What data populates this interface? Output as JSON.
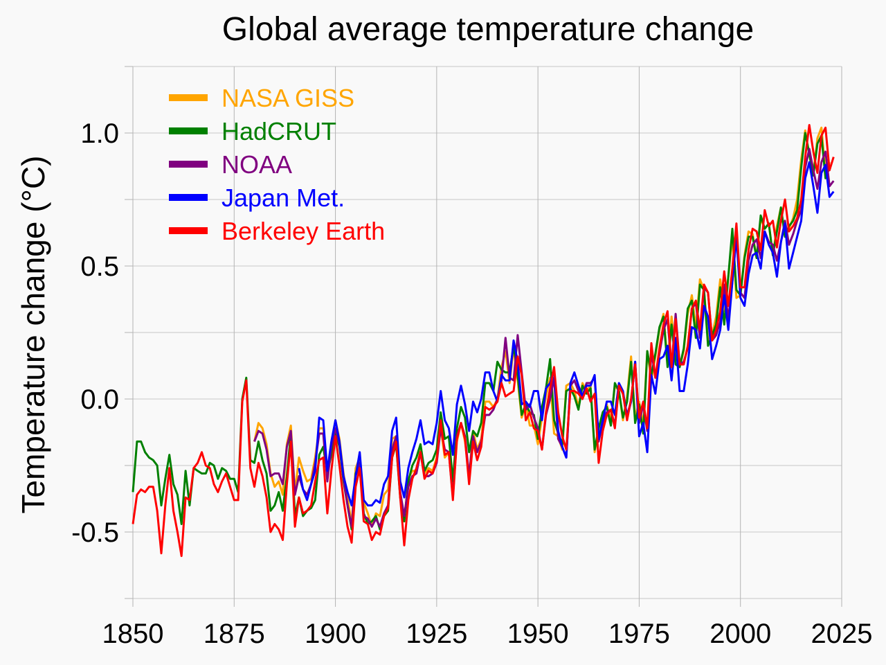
{
  "chart_data": {
    "type": "line",
    "title": "Global average temperature change",
    "xlabel": "",
    "ylabel": "Temperature change (°C)",
    "xlim": [
      1850,
      2025
    ],
    "ylim": [
      -0.75,
      1.25
    ],
    "x_ticks": [
      1850,
      1875,
      1900,
      1925,
      1950,
      1975,
      2000,
      2025
    ],
    "y_ticks": [
      {
        "value": -0.5,
        "label": "-0.5"
      },
      {
        "value": 0,
        "label": "0.0"
      },
      {
        "value": 0.5,
        "label": "0.5"
      },
      {
        "value": 1.0,
        "label": "1.0"
      }
    ],
    "grid": true,
    "legend_position": "top-left",
    "series": [
      {
        "name": "NASA GISS",
        "color": "#ffa500",
        "x_start": 1880,
        "values": [
          -0.16,
          -0.09,
          -0.11,
          -0.17,
          -0.28,
          -0.33,
          -0.31,
          -0.36,
          -0.17,
          -0.1,
          -0.35,
          -0.22,
          -0.27,
          -0.31,
          -0.3,
          -0.22,
          -0.11,
          -0.11,
          -0.27,
          -0.17,
          -0.08,
          -0.15,
          -0.28,
          -0.37,
          -0.47,
          -0.26,
          -0.22,
          -0.39,
          -0.43,
          -0.48,
          -0.43,
          -0.44,
          -0.36,
          -0.34,
          -0.15,
          -0.14,
          -0.36,
          -0.46,
          -0.3,
          -0.27,
          -0.27,
          -0.19,
          -0.28,
          -0.26,
          -0.27,
          -0.22,
          -0.11,
          -0.22,
          -0.2,
          -0.36,
          -0.16,
          -0.09,
          -0.16,
          -0.29,
          -0.12,
          -0.19,
          -0.15,
          -0.01,
          -0.01,
          -0.03,
          0.0,
          0.12,
          0.18,
          0.06,
          0.19,
          0.07,
          -0.07,
          -0.02,
          -0.1,
          -0.1,
          -0.17,
          -0.07,
          0.01,
          0.08,
          -0.13,
          -0.14,
          -0.19,
          0.05,
          0.06,
          0.03,
          -0.03,
          0.06,
          0.03,
          0.05,
          -0.2,
          -0.11,
          -0.06,
          -0.02,
          -0.08,
          0.05,
          0.03,
          -0.08,
          0.01,
          0.16,
          -0.07,
          -0.01,
          -0.1,
          0.18,
          0.07,
          0.16,
          0.26,
          0.32,
          0.14,
          0.31,
          0.16,
          0.12,
          0.18,
          0.32,
          0.39,
          0.27,
          0.45,
          0.41,
          0.22,
          0.24,
          0.31,
          0.45,
          0.33,
          0.46,
          0.61,
          0.38,
          0.39,
          0.54,
          0.63,
          0.62,
          0.53,
          0.68,
          0.64,
          0.66,
          0.54,
          0.65,
          0.72,
          0.61,
          0.64,
          0.68,
          0.75,
          0.9,
          1.01,
          0.92,
          0.85,
          0.98,
          1.02,
          0.85,
          0.89
        ]
      },
      {
        "name": "HadCRUT",
        "color": "#008000",
        "x_start": 1850,
        "values": [
          -0.35,
          -0.16,
          -0.16,
          -0.2,
          -0.22,
          -0.23,
          -0.25,
          -0.4,
          -0.3,
          -0.21,
          -0.32,
          -0.36,
          -0.47,
          -0.27,
          -0.4,
          -0.26,
          -0.27,
          -0.28,
          -0.28,
          -0.24,
          -0.25,
          -0.3,
          -0.26,
          -0.27,
          -0.3,
          -0.3,
          -0.35,
          0.0,
          0.08,
          -0.23,
          -0.24,
          -0.16,
          -0.23,
          -0.28,
          -0.42,
          -0.4,
          -0.35,
          -0.42,
          -0.29,
          -0.13,
          -0.44,
          -0.37,
          -0.44,
          -0.42,
          -0.41,
          -0.38,
          -0.21,
          -0.18,
          -0.28,
          -0.21,
          -0.12,
          -0.18,
          -0.31,
          -0.4,
          -0.49,
          -0.28,
          -0.24,
          -0.43,
          -0.47,
          -0.46,
          -0.44,
          -0.49,
          -0.44,
          -0.42,
          -0.22,
          -0.17,
          -0.37,
          -0.46,
          -0.31,
          -0.25,
          -0.22,
          -0.17,
          -0.27,
          -0.24,
          -0.23,
          -0.19,
          -0.05,
          -0.15,
          -0.14,
          -0.31,
          -0.11,
          -0.03,
          -0.07,
          -0.2,
          -0.12,
          -0.14,
          -0.09,
          0.06,
          0.06,
          0.03,
          0.14,
          0.11,
          0.1,
          0.1,
          0.2,
          0.09,
          -0.06,
          -0.02,
          -0.05,
          -0.06,
          -0.15,
          -0.03,
          0.04,
          0.15,
          -0.08,
          -0.13,
          -0.17,
          0.03,
          0.04,
          0.01,
          -0.04,
          0.05,
          0.02,
          0.04,
          -0.19,
          -0.11,
          -0.05,
          -0.03,
          -0.1,
          0.06,
          0.03,
          -0.07,
          -0.01,
          0.14,
          -0.09,
          -0.02,
          -0.13,
          0.18,
          0.09,
          0.17,
          0.27,
          0.31,
          0.12,
          0.28,
          0.13,
          0.12,
          0.19,
          0.34,
          0.37,
          0.23,
          0.43,
          0.41,
          0.2,
          0.24,
          0.28,
          0.42,
          0.28,
          0.46,
          0.64,
          0.41,
          0.39,
          0.53,
          0.61,
          0.61,
          0.53,
          0.69,
          0.64,
          0.66,
          0.54,
          0.63,
          0.72,
          0.61,
          0.65,
          0.67,
          0.71,
          0.87,
          1.0,
          0.92,
          0.84,
          0.96,
          0.99,
          0.83,
          0.87
        ]
      },
      {
        "name": "NOAA",
        "color": "#800080",
        "x_start": 1880,
        "values": [
          -0.16,
          -0.12,
          -0.13,
          -0.19,
          -0.29,
          -0.28,
          -0.28,
          -0.32,
          -0.18,
          -0.12,
          -0.36,
          -0.29,
          -0.34,
          -0.36,
          -0.32,
          -0.24,
          -0.13,
          -0.13,
          -0.31,
          -0.18,
          -0.11,
          -0.17,
          -0.3,
          -0.4,
          -0.48,
          -0.29,
          -0.24,
          -0.44,
          -0.45,
          -0.48,
          -0.45,
          -0.48,
          -0.43,
          -0.4,
          -0.19,
          -0.14,
          -0.35,
          -0.44,
          -0.33,
          -0.29,
          -0.28,
          -0.2,
          -0.29,
          -0.29,
          -0.28,
          -0.24,
          -0.11,
          -0.19,
          -0.2,
          -0.37,
          -0.14,
          -0.09,
          -0.14,
          -0.29,
          -0.14,
          -0.2,
          -0.16,
          -0.06,
          -0.06,
          -0.04,
          0.0,
          0.07,
          0.23,
          0.08,
          0.07,
          0.24,
          0.1,
          -0.04,
          -0.02,
          -0.07,
          -0.11,
          -0.19,
          -0.06,
          0.0,
          0.08,
          -0.15,
          -0.18,
          -0.22,
          0.05,
          0.07,
          0.03,
          0.01,
          0.06,
          0.06,
          0.08,
          -0.16,
          -0.09,
          -0.05,
          -0.04,
          -0.1,
          0.05,
          0.02,
          -0.06,
          -0.01,
          0.14,
          -0.09,
          -0.02,
          -0.12,
          0.18,
          0.08,
          0.17,
          0.26,
          0.3,
          0.12,
          0.32,
          0.13,
          0.14,
          0.19,
          0.34,
          0.36,
          0.23,
          0.42,
          0.4,
          0.22,
          0.24,
          0.29,
          0.43,
          0.3,
          0.44,
          0.62,
          0.4,
          0.38,
          0.52,
          0.58,
          0.6,
          0.53,
          0.63,
          0.59,
          0.58,
          0.52,
          0.59,
          0.67,
          0.58,
          0.62,
          0.67,
          0.71,
          0.87,
          0.94,
          0.86,
          0.79,
          0.89,
          0.93,
          0.8,
          0.82
        ]
      },
      {
        "name": "Japan Met.",
        "color": "#0000ff",
        "x_start": 1891,
        "values": [
          -0.26,
          -0.34,
          -0.38,
          -0.32,
          -0.27,
          -0.07,
          -0.08,
          -0.27,
          -0.16,
          -0.08,
          -0.16,
          -0.29,
          -0.35,
          -0.4,
          -0.29,
          -0.2,
          -0.38,
          -0.4,
          -0.4,
          -0.38,
          -0.39,
          -0.32,
          -0.29,
          -0.12,
          -0.07,
          -0.31,
          -0.37,
          -0.26,
          -0.2,
          -0.15,
          -0.08,
          -0.17,
          -0.16,
          -0.17,
          -0.09,
          0.03,
          -0.08,
          -0.11,
          -0.21,
          -0.02,
          0.05,
          -0.02,
          -0.12,
          -0.01,
          -0.05,
          0.0,
          0.1,
          0.1,
          0.03,
          -0.01,
          0.09,
          0.07,
          0.07,
          0.22,
          0.14,
          -0.02,
          -0.01,
          -0.03,
          0.03,
          0.03,
          -0.08,
          0.04,
          0.06,
          0.11,
          -0.12,
          -0.18,
          -0.22,
          0.06,
          0.1,
          0.05,
          0.01,
          0.05,
          0.05,
          0.09,
          -0.15,
          -0.08,
          -0.01,
          -0.01,
          -0.06,
          0.06,
          0.03,
          -0.07,
          -0.01,
          0.14,
          -0.14,
          -0.09,
          -0.2,
          0.09,
          0.02,
          0.15,
          0.16,
          0.2,
          0.07,
          0.23,
          0.03,
          0.03,
          0.13,
          0.27,
          0.26,
          0.19,
          0.35,
          0.31,
          0.15,
          0.2,
          0.26,
          0.39,
          0.26,
          0.44,
          0.61,
          0.38,
          0.35,
          0.47,
          0.54,
          0.55,
          0.49,
          0.63,
          0.58,
          0.55,
          0.46,
          0.59,
          0.66,
          0.49,
          0.55,
          0.61,
          0.67,
          0.83,
          0.89,
          0.8,
          0.7,
          0.85,
          0.88,
          0.76,
          0.78
        ]
      },
      {
        "name": "Berkeley Earth",
        "color": "#ff0000",
        "x_start": 1850,
        "values": [
          -0.47,
          -0.36,
          -0.34,
          -0.35,
          -0.33,
          -0.33,
          -0.42,
          -0.58,
          -0.4,
          -0.26,
          -0.42,
          -0.5,
          -0.59,
          -0.37,
          -0.38,
          -0.26,
          -0.24,
          -0.2,
          -0.25,
          -0.26,
          -0.32,
          -0.35,
          -0.31,
          -0.28,
          -0.33,
          -0.38,
          -0.38,
          -0.01,
          0.07,
          -0.26,
          -0.33,
          -0.24,
          -0.29,
          -0.37,
          -0.5,
          -0.47,
          -0.49,
          -0.53,
          -0.32,
          -0.16,
          -0.48,
          -0.37,
          -0.43,
          -0.42,
          -0.4,
          -0.31,
          -0.23,
          -0.22,
          -0.43,
          -0.27,
          -0.14,
          -0.25,
          -0.38,
          -0.48,
          -0.54,
          -0.33,
          -0.26,
          -0.46,
          -0.47,
          -0.53,
          -0.5,
          -0.51,
          -0.44,
          -0.41,
          -0.22,
          -0.16,
          -0.37,
          -0.55,
          -0.38,
          -0.3,
          -0.26,
          -0.2,
          -0.3,
          -0.27,
          -0.28,
          -0.23,
          -0.08,
          -0.21,
          -0.2,
          -0.38,
          -0.15,
          -0.09,
          -0.15,
          -0.32,
          -0.16,
          -0.23,
          -0.18,
          -0.03,
          -0.04,
          -0.03,
          -0.01,
          0.06,
          0.01,
          0.02,
          0.03,
          0.16,
          0.09,
          -0.08,
          -0.05,
          -0.11,
          -0.12,
          -0.19,
          -0.05,
          0.04,
          0.12,
          -0.05,
          -0.14,
          -0.19,
          0.03,
          0.03,
          0.02,
          0.0,
          0.04,
          -0.01,
          0.02,
          -0.24,
          -0.12,
          -0.06,
          -0.04,
          -0.11,
          0.05,
          0.02,
          -0.08,
          0.0,
          0.13,
          -0.07,
          -0.01,
          -0.11,
          0.21,
          0.08,
          0.19,
          0.28,
          0.33,
          0.12,
          0.3,
          0.13,
          0.13,
          0.2,
          0.34,
          0.37,
          0.26,
          0.43,
          0.4,
          0.22,
          0.26,
          0.33,
          0.48,
          0.35,
          0.49,
          0.66,
          0.42,
          0.42,
          0.56,
          0.64,
          0.63,
          0.56,
          0.71,
          0.65,
          0.67,
          0.57,
          0.67,
          0.75,
          0.63,
          0.65,
          0.68,
          0.75,
          0.91,
          1.03,
          0.93,
          0.85,
          0.99,
          1.02,
          0.86,
          0.91
        ]
      }
    ]
  }
}
